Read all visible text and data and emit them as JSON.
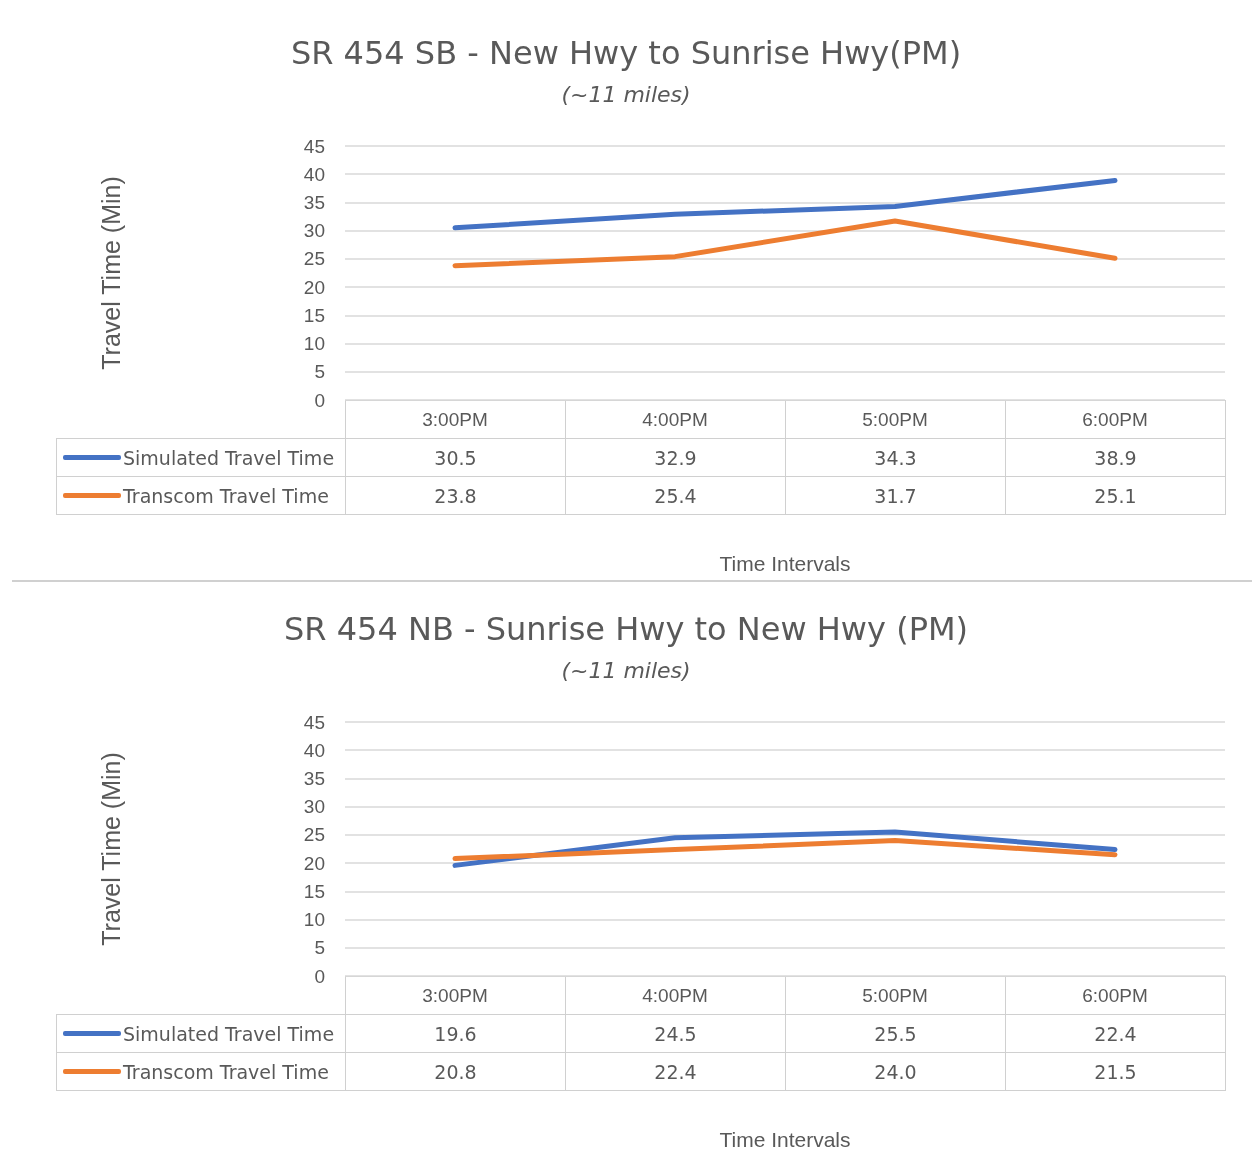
{
  "chart_data": [
    {
      "type": "line",
      "title": "SR 454 SB - New Hwy to Sunrise Hwy(PM)",
      "subtitle": "(~11 miles)",
      "xlabel": "Time Intervals",
      "ylabel": "Travel Time (Min)",
      "categories": [
        "3:00PM",
        "4:00PM",
        "5:00PM",
        "6:00PM"
      ],
      "series": [
        {
          "name": "Simulated Travel Time",
          "color": "#4472c4",
          "values": [
            30.5,
            32.9,
            34.3,
            38.9
          ],
          "value_labels": [
            "30.5",
            "32.9",
            "34.3",
            "38.9"
          ]
        },
        {
          "name": "Transcom Travel Time",
          "color": "#ed7d31",
          "values": [
            23.8,
            25.4,
            31.7,
            25.1
          ],
          "value_labels": [
            "23.8",
            "25.4",
            "31.7",
            "25.1"
          ]
        }
      ],
      "ylim": [
        0,
        45
      ],
      "yticks": [
        0,
        5,
        10,
        15,
        20,
        25,
        30,
        35,
        40,
        45
      ],
      "grid": "y",
      "legend": "bottom left",
      "marker": "none",
      "line_style": "solid"
    },
    {
      "type": "line",
      "title": "SR 454 NB - Sunrise Hwy to New Hwy (PM)",
      "subtitle": "(~11 miles)",
      "xlabel": "Time Intervals",
      "ylabel": "Travel Time (Min)",
      "categories": [
        "3:00PM",
        "4:00PM",
        "5:00PM",
        "6:00PM"
      ],
      "series": [
        {
          "name": "Simulated Travel Time",
          "color": "#4472c4",
          "values": [
            19.6,
            24.5,
            25.5,
            22.4
          ],
          "value_labels": [
            "19.6",
            "24.5",
            "25.5",
            "22.4"
          ]
        },
        {
          "name": "Transcom Travel Time",
          "color": "#ed7d31",
          "values": [
            20.8,
            22.4,
            24.0,
            21.5
          ],
          "value_labels": [
            "20.8",
            "22.4",
            "24.0",
            "21.5"
          ]
        }
      ],
      "ylim": [
        0,
        45
      ],
      "yticks": [
        0,
        5,
        10,
        15,
        20,
        25,
        30,
        35,
        40,
        45
      ],
      "grid": "y",
      "legend": "bottom left",
      "marker": "none",
      "line_style": "solid"
    }
  ]
}
